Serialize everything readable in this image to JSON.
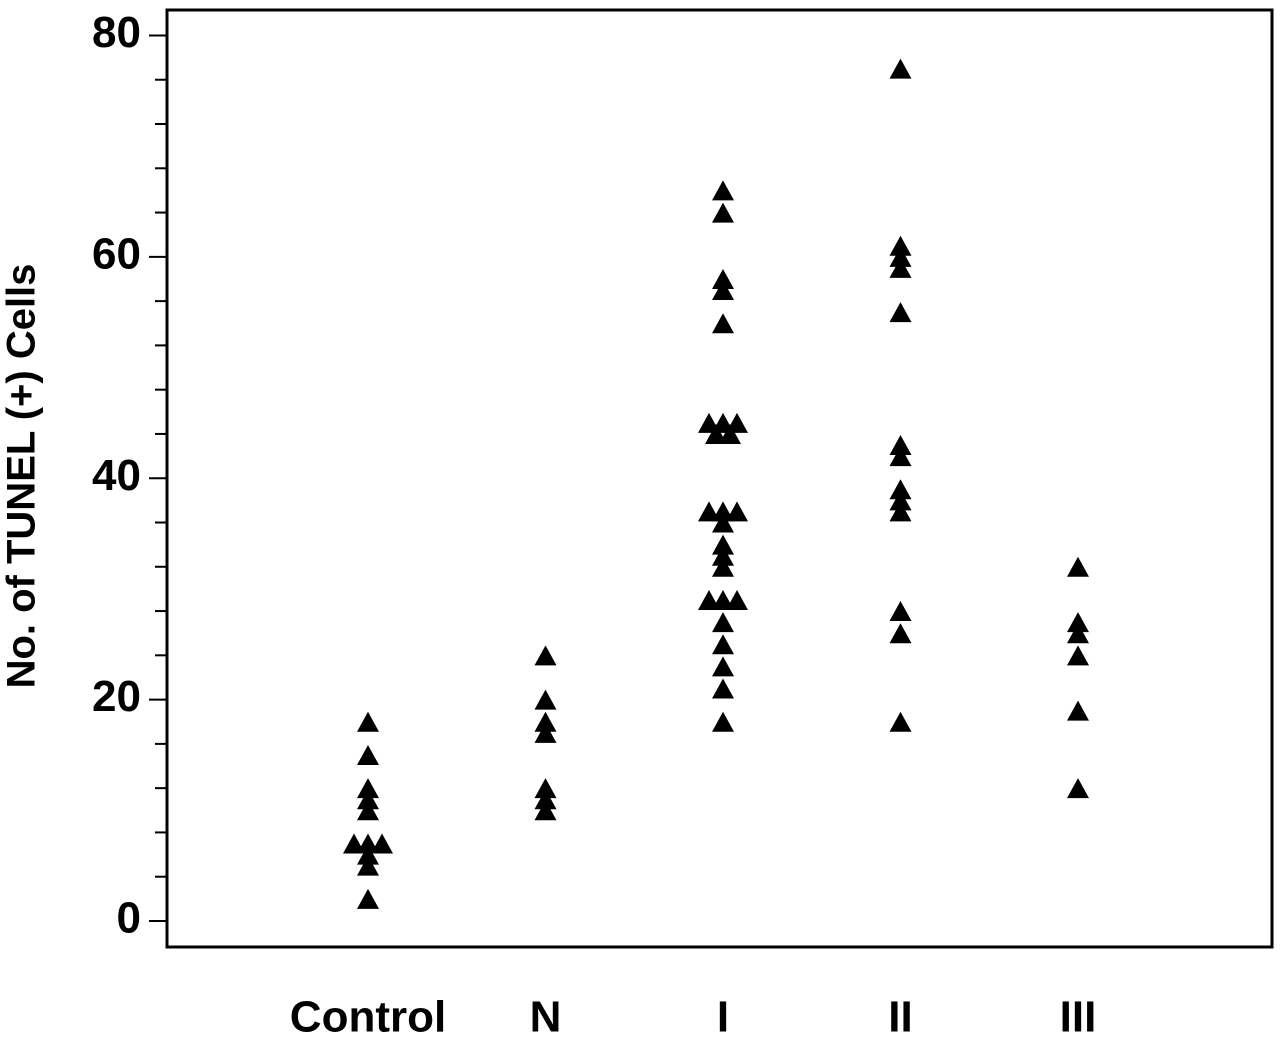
{
  "chart_data": {
    "type": "strip",
    "ylabel": "No. of TUNEL (+) Cells",
    "categories": [
      "Control",
      "N",
      "I",
      "II",
      "III"
    ],
    "values": [
      [
        18,
        15,
        12,
        11,
        10,
        7,
        7,
        7,
        6,
        5,
        2
      ],
      [
        24,
        20,
        18,
        17,
        12,
        11,
        10
      ],
      [
        66,
        64,
        58,
        57,
        54,
        45,
        45,
        45,
        44,
        44,
        37,
        37,
        37,
        36,
        34,
        33,
        32,
        29,
        29,
        29,
        27,
        25,
        23,
        21,
        18
      ],
      [
        77,
        61,
        60,
        59,
        55,
        43,
        42,
        39,
        38,
        37,
        28,
        26,
        18
      ],
      [
        32,
        27,
        26,
        24,
        19,
        12
      ]
    ],
    "color": "#000000",
    "marker": "triangle",
    "ylim": [
      -2.35,
      82.3
    ],
    "yticks": [
      0,
      20,
      40,
      60,
      80
    ],
    "yminorticks": [
      4,
      8,
      12,
      16,
      24,
      28,
      32,
      36,
      44,
      48,
      52,
      56,
      64,
      68,
      72,
      76
    ]
  }
}
